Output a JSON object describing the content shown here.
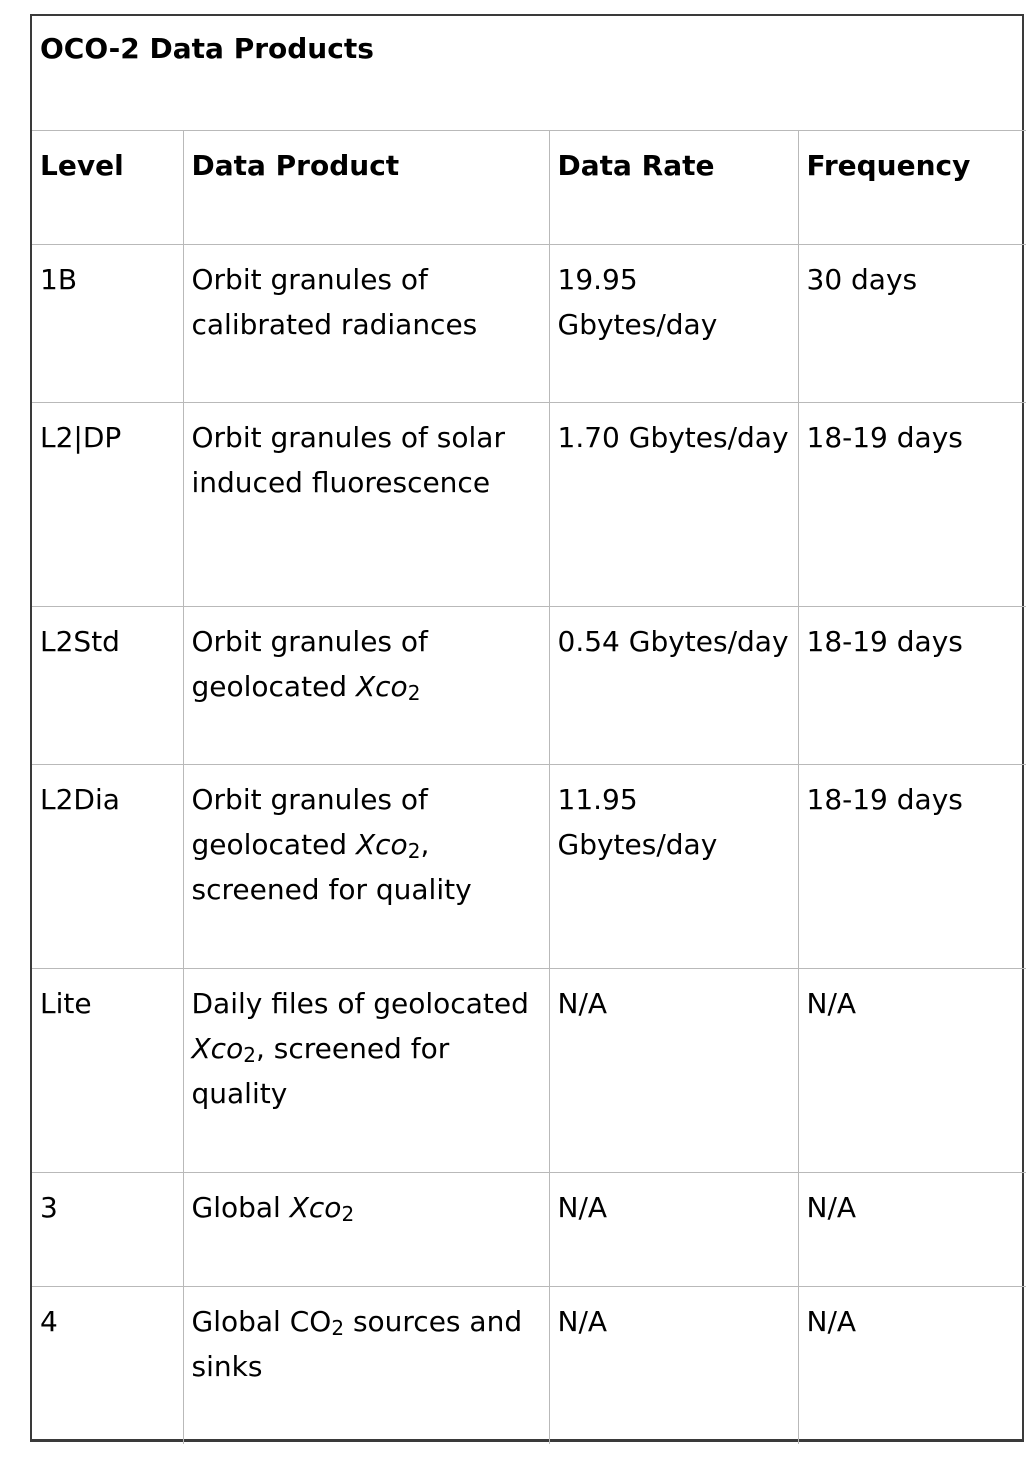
{
  "table": {
    "caption": "OCO-2 Data Products",
    "headers": {
      "level": "Level",
      "product": "Data Product",
      "rate": "Data Rate",
      "frequency": "Frequency"
    },
    "rows": [
      {
        "level": "1B",
        "product_pre": "Orbit granules of calibrated radiances",
        "rate": "19.95 Gbytes/day",
        "frequency": "30 days"
      },
      {
        "level": "L2|DP",
        "product_pre": "Orbit granules of solar induced fluorescence",
        "rate": "1.70 Gbytes/day",
        "frequency": "18-19 days"
      },
      {
        "level": "L2Std",
        "product_pre": "Orbit granules of geolocated ",
        "product_var": "Xco",
        "product_sub": "2",
        "product_post": "",
        "rate": "0.54 Gbytes/day",
        "frequency": "18-19 days"
      },
      {
        "level": "L2Dia",
        "product_pre": "Orbit granules of geolocated ",
        "product_var": "Xco",
        "product_sub": "2",
        "product_post": ", screened for quality",
        "rate": "11.95 Gbytes/day",
        "frequency": "18-19 days"
      },
      {
        "level": "Lite",
        "product_pre": "Daily files of geolocated ",
        "product_var": "Xco",
        "product_sub": "2",
        "product_post": ", screened for quality",
        "rate": "N/A",
        "frequency": "N/A"
      },
      {
        "level": "3",
        "product_pre": "Global ",
        "product_var": "Xco",
        "product_sub": "2",
        "product_post": "",
        "rate": "N/A",
        "frequency": "N/A"
      },
      {
        "level": "4",
        "product_pre": "Global CO",
        "product_sub_plain": "2",
        "product_post": " sources and sinks",
        "rate": "N/A",
        "frequency": "N/A"
      }
    ]
  }
}
